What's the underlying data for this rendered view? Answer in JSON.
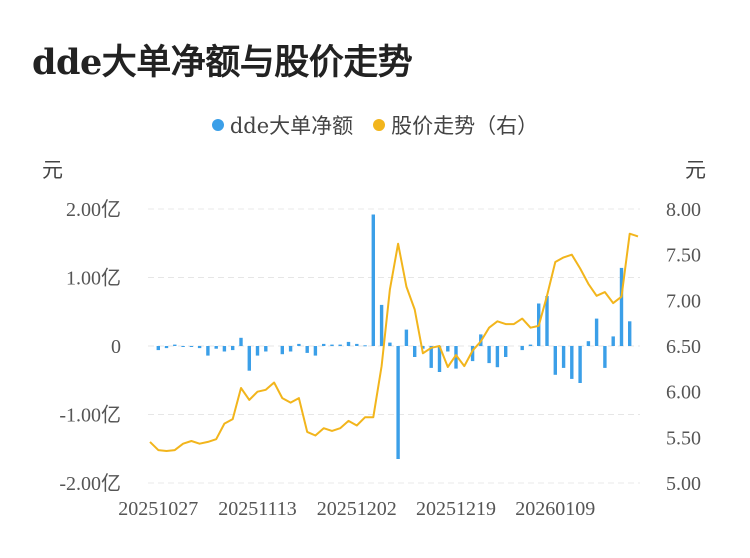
{
  "title": "dde大单净额与股价走势",
  "legend": [
    {
      "label": "dde大单净额",
      "color": "#3b9fe8"
    },
    {
      "label": "股价走势（右）",
      "color": "#f2b51c"
    }
  ],
  "chart_data": {
    "type": "bar+line",
    "left_unit": "元",
    "right_unit": "元",
    "left_ticks": [
      "2.00亿",
      "1.00亿",
      "0",
      "-1.00亿",
      "-2.00亿"
    ],
    "right_ticks": [
      "8.00",
      "7.50",
      "7.00",
      "6.50",
      "6.00",
      "5.50",
      "5.00"
    ],
    "x_tick_labels": [
      "20251027",
      "20251113",
      "20251202",
      "20251219",
      "20260109"
    ],
    "x_tick_index": [
      1,
      13,
      25,
      37,
      49
    ],
    "ylim_left": [
      -2.0,
      2.0
    ],
    "ylim_right": [
      5.0,
      8.0
    ],
    "series": [
      {
        "name": "dde大单净额",
        "type": "bar",
        "unit": "亿",
        "values": [
          0.0,
          -0.06,
          -0.03,
          0.02,
          -0.01,
          -0.01,
          -0.03,
          -0.14,
          -0.04,
          -0.08,
          -0.06,
          0.12,
          -0.36,
          -0.14,
          -0.08,
          0.0,
          -0.12,
          -0.08,
          0.03,
          -0.1,
          -0.14,
          0.03,
          0.02,
          0.02,
          0.06,
          0.03,
          0.01,
          1.92,
          0.6,
          0.05,
          -1.65,
          0.24,
          -0.16,
          -0.04,
          -0.32,
          -0.38,
          -0.08,
          -0.33,
          0.0,
          -0.22,
          0.17,
          -0.25,
          -0.31,
          -0.16,
          0.0,
          -0.06,
          0.02,
          0.62,
          0.73,
          -0.42,
          -0.32,
          -0.48,
          -0.54,
          0.07,
          0.4,
          -0.32,
          0.14,
          1.14,
          0.36
        ]
      },
      {
        "name": "股价走势（右）",
        "type": "line",
        "values": [
          5.45,
          5.36,
          5.35,
          5.36,
          5.43,
          5.46,
          5.43,
          5.45,
          5.48,
          5.65,
          5.7,
          6.04,
          5.91,
          6.0,
          6.02,
          6.1,
          5.93,
          5.88,
          5.93,
          5.56,
          5.52,
          5.6,
          5.57,
          5.6,
          5.68,
          5.63,
          5.72,
          5.72,
          6.28,
          7.12,
          7.62,
          7.15,
          6.9,
          6.42,
          6.48,
          6.5,
          6.27,
          6.4,
          6.28,
          6.45,
          6.55,
          6.7,
          6.77,
          6.74,
          6.74,
          6.8,
          6.7,
          6.72,
          7.05,
          7.42,
          7.47,
          7.5,
          7.35,
          7.18,
          7.05,
          7.09,
          6.97,
          7.04,
          7.73,
          7.7
        ]
      }
    ]
  }
}
